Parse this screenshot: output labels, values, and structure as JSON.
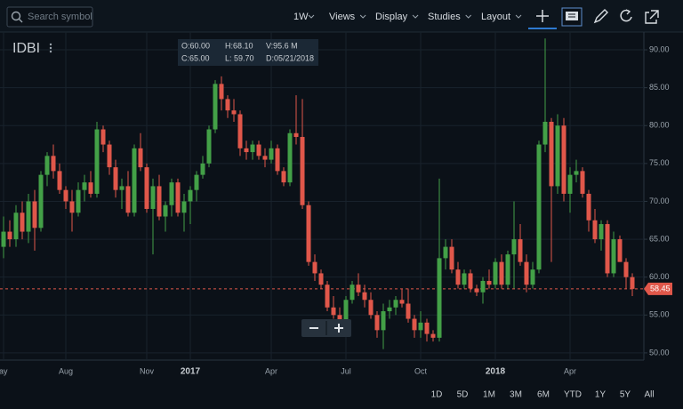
{
  "toolbar": {
    "search_placeholder": "Search symbol",
    "interval": "1W",
    "menus": [
      "Views",
      "Display",
      "Studies",
      "Layout"
    ]
  },
  "chart_data": {
    "type": "candlestick",
    "title": "IDBI",
    "ohlc_box": {
      "open": "O:60.00",
      "high": "H:68.10",
      "volume": "V:95.6 M",
      "close": "C:65.00",
      "low": "L: 59.70",
      "date": "D:05/21/2018"
    },
    "categories": [
      "May",
      null,
      null,
      null,
      null,
      null,
      null,
      null,
      null,
      null,
      "Aug",
      null,
      null,
      null,
      null,
      null,
      null,
      null,
      null,
      null,
      null,
      null,
      null,
      "Nov",
      null,
      null,
      null,
      null,
      null,
      null,
      "2017",
      null,
      null,
      null,
      null,
      null,
      null,
      null,
      null,
      null,
      null,
      null,
      null,
      "Apr",
      null,
      null,
      null,
      null,
      null,
      null,
      null,
      null,
      null,
      null,
      null,
      "Jul",
      null,
      null,
      null,
      null,
      null,
      null,
      null,
      null,
      null,
      null,
      null,
      "Oct",
      null,
      null,
      null,
      null,
      null,
      null,
      null,
      null,
      null,
      null,
      null,
      "2018",
      null,
      null,
      null,
      null,
      null,
      null,
      null,
      null,
      null,
      null,
      null,
      "Apr",
      null,
      null,
      null,
      null,
      null,
      null,
      null,
      null,
      null,
      null
    ],
    "open": [
      64,
      66,
      65,
      68.5,
      66,
      70,
      66.5,
      73.5,
      76,
      74,
      71.5,
      70,
      68.5,
      71.5,
      72.5,
      71,
      79.5,
      77.5,
      74.5,
      71.5,
      72,
      68.5,
      77,
      74.5,
      69,
      72,
      68,
      69.5,
      72.5,
      68.5,
      70,
      71.5,
      73.5,
      75,
      79.5,
      85.5,
      83.5,
      82,
      81.5,
      77,
      76.5,
      77.5,
      76,
      75.5,
      77,
      74,
      72.5,
      79,
      78.5,
      69.5,
      62,
      60.5,
      59,
      56,
      55,
      54,
      57,
      59,
      58,
      57,
      55,
      53,
      55.5,
      56,
      57,
      56.5,
      54.5,
      53,
      54,
      52.5,
      52,
      62.5,
      64,
      61,
      59,
      60.5,
      58.5,
      58,
      59.5,
      59,
      62,
      59,
      63,
      65,
      62,
      59,
      61,
      77.5,
      80.5,
      72,
      80,
      71,
      73.5,
      74,
      71,
      67.5,
      65,
      67,
      60.5,
      65,
      62,
      60
    ],
    "high": [
      68,
      67.5,
      69.5,
      70,
      71,
      71.5,
      74,
      76.5,
      77.5,
      75,
      72,
      71.5,
      72.5,
      73.5,
      74,
      80.5,
      80,
      78,
      75.5,
      73,
      74,
      77.5,
      79,
      75,
      73,
      73.5,
      70,
      73,
      73,
      71,
      72,
      74,
      76,
      80,
      86,
      86.5,
      84,
      83.5,
      82,
      78,
      78,
      78,
      77,
      78,
      77.5,
      74.5,
      79.5,
      84,
      83.5,
      70,
      63,
      61,
      59.5,
      57.5,
      56,
      57.5,
      59.5,
      60.5,
      59,
      58,
      55.5,
      56.5,
      57,
      57.5,
      58.5,
      58.5,
      55,
      55.5,
      54.5,
      53,
      73,
      65,
      65,
      62,
      61,
      61,
      59,
      60,
      61,
      62.5,
      63,
      63.5,
      70,
      67,
      63,
      62,
      78,
      91.5,
      81,
      81.5,
      81,
      74.5,
      75.5,
      74.5,
      71.5,
      69,
      67.5,
      67.5,
      66,
      65.5,
      62.5,
      60.5
    ],
    "low": [
      62.5,
      64,
      64,
      65,
      64.5,
      63.5,
      66,
      72,
      73,
      71,
      69,
      66,
      68,
      70,
      70.5,
      70.5,
      76.5,
      73.5,
      70.5,
      69,
      68,
      68,
      74,
      68.5,
      63,
      67.5,
      66,
      68,
      68,
      66,
      67,
      70,
      73,
      74.5,
      79,
      82,
      81,
      80.5,
      76,
      75.5,
      75.5,
      75.5,
      74.5,
      75,
      73.5,
      72,
      72,
      77.5,
      69,
      61.5,
      59.5,
      58.5,
      55.5,
      54.5,
      53,
      53.5,
      56.5,
      57.5,
      56,
      54.5,
      52,
      50.5,
      54.5,
      55,
      56,
      54,
      52,
      52,
      51.5,
      51.5,
      51.5,
      61,
      60.5,
      58.5,
      58.5,
      58,
      57.5,
      56.5,
      58.5,
      58.5,
      58.5,
      58.5,
      58.5,
      61.5,
      58,
      58.5,
      60.5,
      76.5,
      62,
      71,
      70,
      68.5,
      72.5,
      70.5,
      66,
      64.5,
      63.5,
      60,
      60,
      62,
      58.5,
      57.5
    ],
    "close": [
      66,
      65,
      68.5,
      66,
      70,
      66.5,
      73.5,
      76,
      74,
      71.5,
      70,
      68.5,
      71.5,
      72.5,
      71,
      79.5,
      77.5,
      74.5,
      71.5,
      72,
      68.5,
      77,
      74.5,
      69,
      72,
      68,
      69.5,
      72.5,
      68.5,
      70,
      71.5,
      73.5,
      75,
      79.5,
      85.5,
      83.5,
      82,
      81.5,
      77,
      76.5,
      77.5,
      76,
      75.5,
      77,
      74,
      72.5,
      79,
      78.5,
      69.5,
      62,
      60.5,
      59,
      56,
      55,
      54,
      57,
      59,
      58,
      57,
      55,
      53,
      55.5,
      56,
      57,
      56.5,
      54.5,
      53,
      54,
      52.5,
      52,
      62.5,
      64,
      61,
      59,
      60.5,
      58.5,
      58,
      59.5,
      59,
      62,
      59,
      63,
      65,
      62,
      59,
      61,
      77.5,
      80.5,
      72,
      80,
      71,
      73.5,
      74,
      71,
      67.5,
      65,
      67,
      60.5,
      65,
      62,
      60,
      58.45
    ],
    "up_color": "#43a047",
    "down_color": "#e0574a",
    "last_price": 58.45,
    "ylim": [
      49.05,
      92.35
    ],
    "yticks": [
      {
        "value": 50,
        "label": "50.00"
      },
      {
        "value": 55,
        "label": "55.00"
      },
      {
        "value": 60,
        "label": "60.00"
      },
      {
        "value": 65,
        "label": "65.00"
      },
      {
        "value": 70,
        "label": "70.00"
      },
      {
        "value": 75,
        "label": "75.00"
      },
      {
        "value": 80,
        "label": "80.00"
      },
      {
        "value": 85,
        "label": "85.00"
      },
      {
        "value": 90,
        "label": "90.00"
      }
    ],
    "grid": true
  },
  "range_buttons": [
    "1D",
    "5D",
    "1M",
    "3M",
    "6M",
    "YTD",
    "1Y",
    "5Y",
    "All"
  ]
}
